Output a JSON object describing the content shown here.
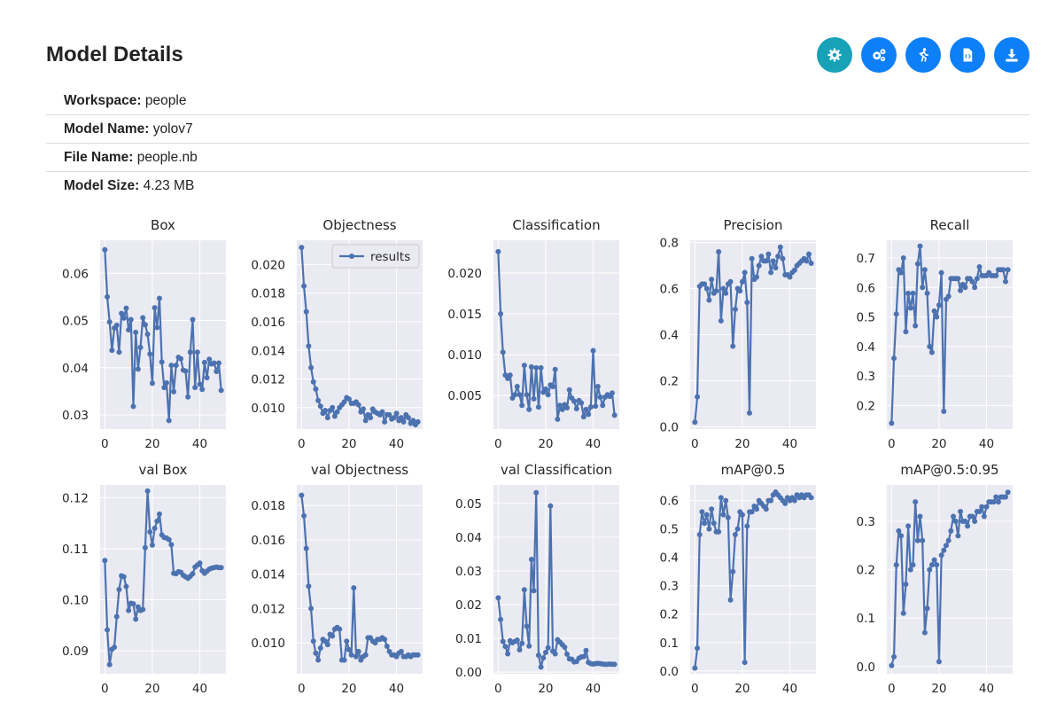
{
  "page": {
    "title": "Model Details"
  },
  "toolbar": {
    "buttons": [
      {
        "icon": "gear-icon",
        "color": "#17a2b8"
      },
      {
        "icon": "gears-icon",
        "color": "#0d7ff7"
      },
      {
        "icon": "running-icon",
        "color": "#0d7ff7"
      },
      {
        "icon": "code-file-icon",
        "color": "#0d7ff7"
      },
      {
        "icon": "download-icon",
        "color": "#0d7ff7"
      }
    ]
  },
  "details": [
    {
      "label": "Workspace:",
      "value": "people"
    },
    {
      "label": "Model Name:",
      "value": "yolov7"
    },
    {
      "label": "File Name:",
      "value": "people.nb"
    },
    {
      "label": "Model Size:",
      "value": "4.23 MB"
    }
  ],
  "chart_data": [
    {
      "type": "line",
      "title": "Box",
      "xlabel": "",
      "ylabel": "",
      "xlim": [
        -2,
        51
      ],
      "ylim": [
        0.027,
        0.067
      ],
      "xticks": [
        0,
        20,
        40
      ],
      "yticks": [
        0.03,
        0.04,
        0.05,
        0.06
      ],
      "ytick_labels": [
        "0.03",
        "0.04",
        "0.05",
        "0.06"
      ],
      "line_color": "#4c72b0",
      "grid": true,
      "series": [
        {
          "name": "",
          "y": [
            0.065,
            0.055,
            0.0497,
            0.0437,
            0.0484,
            0.049,
            0.0433,
            0.0515,
            0.0505,
            0.0526,
            0.048,
            0.0502,
            0.0318,
            0.0475,
            0.0397,
            0.0443,
            0.0506,
            0.0491,
            0.0471,
            0.0429,
            0.0367,
            0.0527,
            0.0485,
            0.0547,
            0.0412,
            0.0358,
            0.0368,
            0.0288,
            0.0405,
            0.0349,
            0.0405,
            0.0422,
            0.0419,
            0.0395,
            0.0393,
            0.0338,
            0.0433,
            0.0502,
            0.0358,
            0.0433,
            0.0365,
            0.0354,
            0.0411,
            0.0379,
            0.0418,
            0.0408,
            0.041,
            0.0392,
            0.041,
            0.0352
          ]
        }
      ]
    },
    {
      "type": "line",
      "title": "Objectness",
      "xlabel": "",
      "ylabel": "",
      "xlim": [
        -2,
        51
      ],
      "ylim": [
        0.0085,
        0.0217
      ],
      "xticks": [
        0,
        20,
        40
      ],
      "yticks": [
        0.01,
        0.012,
        0.014,
        0.016,
        0.018,
        0.02
      ],
      "ytick_labels": [
        "0.010",
        "0.012",
        "0.014",
        "0.016",
        "0.018",
        "0.020"
      ],
      "line_color": "#4c72b0",
      "grid": true,
      "legend": {
        "position": "top-right",
        "entries": [
          "results"
        ]
      },
      "series": [
        {
          "name": "results",
          "y": [
            0.0212,
            0.0185,
            0.0167,
            0.0143,
            0.0128,
            0.0118,
            0.0113,
            0.0105,
            0.0101,
            0.0096,
            0.0098,
            0.0093,
            0.0098,
            0.01,
            0.0094,
            0.0097,
            0.01,
            0.0102,
            0.0104,
            0.0107,
            0.0106,
            0.0103,
            0.0103,
            0.0104,
            0.0102,
            0.0097,
            0.0099,
            0.0091,
            0.0095,
            0.0093,
            0.0099,
            0.0097,
            0.0096,
            0.0095,
            0.0097,
            0.009,
            0.0095,
            0.0095,
            0.0092,
            0.0093,
            0.0096,
            0.0091,
            0.0093,
            0.009,
            0.0095,
            0.0093,
            0.0089,
            0.0091,
            0.0088,
            0.009
          ]
        }
      ]
    },
    {
      "type": "line",
      "title": "Classification",
      "xlabel": "",
      "ylabel": "",
      "xlim": [
        -2,
        51
      ],
      "ylim": [
        0.0009,
        0.024
      ],
      "xticks": [
        0,
        20,
        40
      ],
      "yticks": [
        0.005,
        0.01,
        0.015,
        0.02
      ],
      "ytick_labels": [
        "0.005",
        "0.010",
        "0.015",
        "0.020"
      ],
      "line_color": "#4c72b0",
      "grid": true,
      "series": [
        {
          "name": "",
          "y": [
            0.0226,
            0.015,
            0.0103,
            0.0075,
            0.0071,
            0.0075,
            0.0047,
            0.0051,
            0.0061,
            0.0051,
            0.0038,
            0.0087,
            0.0051,
            0.0033,
            0.0085,
            0.0046,
            0.0084,
            0.0036,
            0.0084,
            0.0054,
            0.0058,
            0.0051,
            0.0063,
            0.0061,
            0.0082,
            0.0021,
            0.0038,
            0.0033,
            0.0039,
            0.0035,
            0.0057,
            0.0047,
            0.0043,
            0.0034,
            0.0044,
            0.0041,
            0.0024,
            0.0033,
            0.0027,
            0.0036,
            0.0105,
            0.0037,
            0.0061,
            0.0048,
            0.0038,
            0.0048,
            0.0051,
            0.0049,
            0.0053,
            0.0026
          ]
        }
      ]
    },
    {
      "type": "line",
      "title": "Precision",
      "xlabel": "",
      "ylabel": "",
      "xlim": [
        -2,
        51
      ],
      "ylim": [
        -0.01,
        0.81
      ],
      "xticks": [
        0,
        20,
        40
      ],
      "yticks": [
        0.0,
        0.2,
        0.4,
        0.6,
        0.8
      ],
      "ytick_labels": [
        "0.0",
        "0.2",
        "0.4",
        "0.6",
        "0.8"
      ],
      "line_color": "#4c72b0",
      "grid": true,
      "series": [
        {
          "name": "",
          "y": [
            0.02,
            0.13,
            0.61,
            0.62,
            0.62,
            0.6,
            0.55,
            0.64,
            0.58,
            0.59,
            0.76,
            0.46,
            0.6,
            0.58,
            0.62,
            0.63,
            0.35,
            0.51,
            0.6,
            0.59,
            0.63,
            0.67,
            0.54,
            0.06,
            0.73,
            0.64,
            0.65,
            0.7,
            0.74,
            0.72,
            0.72,
            0.75,
            0.67,
            0.72,
            0.69,
            0.74,
            0.78,
            0.73,
            0.66,
            0.66,
            0.65,
            0.67,
            0.68,
            0.7,
            0.71,
            0.72,
            0.73,
            0.72,
            0.75,
            0.71
          ]
        }
      ]
    },
    {
      "type": "line",
      "title": "Recall",
      "xlabel": "",
      "ylabel": "",
      "xlim": [
        -2,
        51
      ],
      "ylim": [
        0.12,
        0.76
      ],
      "xticks": [
        0,
        20,
        40
      ],
      "yticks": [
        0.2,
        0.3,
        0.4,
        0.5,
        0.6,
        0.7
      ],
      "ytick_labels": [
        "0.2",
        "0.3",
        "0.4",
        "0.5",
        "0.6",
        "0.7"
      ],
      "line_color": "#4c72b0",
      "grid": true,
      "series": [
        {
          "name": "",
          "y": [
            0.14,
            0.36,
            0.51,
            0.66,
            0.65,
            0.7,
            0.45,
            0.58,
            0.53,
            0.58,
            0.47,
            0.68,
            0.74,
            0.6,
            0.66,
            0.58,
            0.4,
            0.38,
            0.52,
            0.5,
            0.54,
            0.65,
            0.18,
            0.56,
            0.57,
            0.63,
            0.63,
            0.63,
            0.63,
            0.59,
            0.61,
            0.6,
            0.63,
            0.63,
            0.62,
            0.6,
            0.63,
            0.67,
            0.64,
            0.64,
            0.64,
            0.65,
            0.64,
            0.64,
            0.64,
            0.66,
            0.66,
            0.66,
            0.62,
            0.66
          ]
        }
      ]
    },
    {
      "type": "line",
      "title": "val Box",
      "xlabel": "",
      "ylabel": "",
      "xlim": [
        -2,
        51
      ],
      "ylim": [
        0.0855,
        0.1225
      ],
      "xticks": [
        0,
        20,
        40
      ],
      "yticks": [
        0.09,
        0.1,
        0.11,
        0.12
      ],
      "ytick_labels": [
        "0.09",
        "0.10",
        "0.11",
        "0.12"
      ],
      "line_color": "#4c72b0",
      "grid": true,
      "series": [
        {
          "name": "",
          "y": [
            0.1077,
            0.0941,
            0.0873,
            0.0903,
            0.0907,
            0.0967,
            0.102,
            0.1047,
            0.1045,
            0.1026,
            0.0979,
            0.0993,
            0.0992,
            0.0962,
            0.0986,
            0.0979,
            0.0981,
            0.1102,
            0.1213,
            0.1133,
            0.1107,
            0.114,
            0.1154,
            0.1168,
            0.1127,
            0.1122,
            0.1121,
            0.1118,
            0.1108,
            0.1052,
            0.1051,
            0.1055,
            0.1054,
            0.1048,
            0.1045,
            0.1042,
            0.1046,
            0.1051,
            0.1064,
            0.1068,
            0.1072,
            0.1057,
            0.1052,
            0.1056,
            0.106,
            0.1062,
            0.1063,
            0.1064,
            0.1063,
            0.1063
          ]
        }
      ]
    },
    {
      "type": "line",
      "title": "val Objectness",
      "xlabel": "",
      "ylabel": "",
      "xlim": [
        -2,
        51
      ],
      "ylim": [
        0.0082,
        0.0192
      ],
      "xticks": [
        0,
        20,
        40
      ],
      "yticks": [
        0.01,
        0.012,
        0.014,
        0.016,
        0.018
      ],
      "ytick_labels": [
        "0.010",
        "0.012",
        "0.014",
        "0.016",
        "0.018"
      ],
      "line_color": "#4c72b0",
      "grid": true,
      "series": [
        {
          "name": "",
          "y": [
            0.0186,
            0.0174,
            0.0155,
            0.0133,
            0.012,
            0.0101,
            0.0094,
            0.009,
            0.0097,
            0.0102,
            0.0101,
            0.0099,
            0.0105,
            0.0104,
            0.0108,
            0.0109,
            0.0108,
            0.009,
            0.009,
            0.0101,
            0.0096,
            0.0093,
            0.0132,
            0.0092,
            0.0095,
            0.009,
            0.0092,
            0.0093,
            0.0103,
            0.0103,
            0.0101,
            0.01,
            0.0102,
            0.0102,
            0.0103,
            0.0102,
            0.0098,
            0.0095,
            0.0093,
            0.0093,
            0.0092,
            0.0094,
            0.0095,
            0.0092,
            0.0092,
            0.0093,
            0.0092,
            0.0093,
            0.0093,
            0.0093
          ]
        }
      ]
    },
    {
      "type": "line",
      "title": "val Classification",
      "xlabel": "",
      "ylabel": "",
      "xlim": [
        -2,
        51
      ],
      "ylim": [
        -0.0005,
        0.0555
      ],
      "xticks": [
        0,
        20,
        40
      ],
      "yticks": [
        0.0,
        0.01,
        0.02,
        0.03,
        0.04,
        0.05
      ],
      "ytick_labels": [
        "0.00",
        "0.01",
        "0.02",
        "0.03",
        "0.04",
        "0.05"
      ],
      "line_color": "#4c72b0",
      "grid": true,
      "series": [
        {
          "name": "",
          "y": [
            0.022,
            0.0156,
            0.0091,
            0.0076,
            0.0054,
            0.0093,
            0.0087,
            0.0091,
            0.0095,
            0.0066,
            0.0085,
            0.0244,
            0.0136,
            0.0077,
            0.0334,
            0.0241,
            0.0532,
            0.005,
            0.0015,
            0.0042,
            0.0058,
            0.0072,
            0.0493,
            0.0062,
            0.0054,
            0.0096,
            0.0089,
            0.0081,
            0.0074,
            0.0053,
            0.0039,
            0.0038,
            0.003,
            0.0031,
            0.0041,
            0.0045,
            0.0046,
            0.0064,
            0.0029,
            0.0025,
            0.0024,
            0.0025,
            0.0026,
            0.0025,
            0.0024,
            0.0023,
            0.0023,
            0.0024,
            0.0023,
            0.0023
          ]
        }
      ]
    },
    {
      "type": "line",
      "title": "mAP@0.5",
      "xlabel": "",
      "ylabel": "",
      "xlim": [
        -2,
        51
      ],
      "ylim": [
        -0.01,
        0.655
      ],
      "xticks": [
        0,
        20,
        40
      ],
      "yticks": [
        0.0,
        0.1,
        0.2,
        0.3,
        0.4,
        0.5,
        0.6
      ],
      "ytick_labels": [
        "0.0",
        "0.1",
        "0.2",
        "0.3",
        "0.4",
        "0.5",
        "0.6"
      ],
      "line_color": "#4c72b0",
      "grid": true,
      "series": [
        {
          "name": "",
          "y": [
            0.01,
            0.08,
            0.48,
            0.56,
            0.52,
            0.55,
            0.5,
            0.57,
            0.52,
            0.49,
            0.49,
            0.61,
            0.55,
            0.6,
            0.54,
            0.25,
            0.35,
            0.48,
            0.5,
            0.56,
            0.55,
            0.03,
            0.51,
            0.56,
            0.56,
            0.58,
            0.57,
            0.6,
            0.59,
            0.58,
            0.57,
            0.6,
            0.6,
            0.62,
            0.63,
            0.62,
            0.61,
            0.6,
            0.59,
            0.61,
            0.6,
            0.61,
            0.6,
            0.62,
            0.61,
            0.62,
            0.61,
            0.62,
            0.62,
            0.61
          ]
        }
      ]
    },
    {
      "type": "line",
      "title": "mAP@0.5:0.95",
      "xlabel": "",
      "ylabel": "",
      "xlim": [
        -2,
        51
      ],
      "ylim": [
        -0.015,
        0.375
      ],
      "xticks": [
        0,
        20,
        40
      ],
      "yticks": [
        0.0,
        0.1,
        0.2,
        0.3
      ],
      "ytick_labels": [
        "0.0",
        "0.1",
        "0.2",
        "0.3"
      ],
      "line_color": "#4c72b0",
      "grid": true,
      "series": [
        {
          "name": "",
          "y": [
            0.002,
            0.02,
            0.21,
            0.28,
            0.27,
            0.11,
            0.17,
            0.29,
            0.2,
            0.21,
            0.34,
            0.26,
            0.31,
            0.26,
            0.07,
            0.12,
            0.2,
            0.21,
            0.22,
            0.21,
            0.01,
            0.23,
            0.24,
            0.25,
            0.26,
            0.28,
            0.31,
            0.3,
            0.27,
            0.32,
            0.3,
            0.3,
            0.29,
            0.31,
            0.31,
            0.3,
            0.32,
            0.32,
            0.33,
            0.31,
            0.33,
            0.34,
            0.34,
            0.34,
            0.35,
            0.34,
            0.35,
            0.35,
            0.35,
            0.36
          ]
        }
      ]
    }
  ]
}
